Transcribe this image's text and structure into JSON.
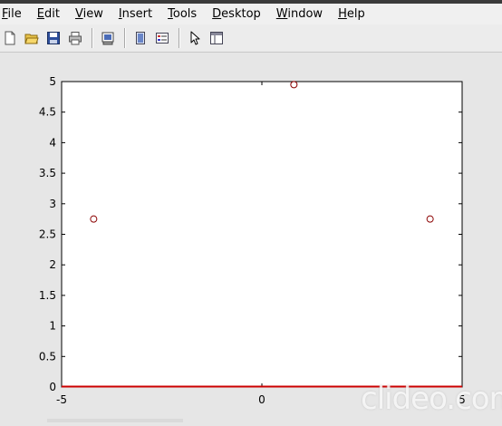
{
  "menu": {
    "items": [
      {
        "accel": "F",
        "rest": "ile"
      },
      {
        "accel": "E",
        "rest": "dit"
      },
      {
        "accel": "V",
        "rest": "iew"
      },
      {
        "accel": "I",
        "rest": "nsert"
      },
      {
        "accel": "T",
        "rest": "ools"
      },
      {
        "accel": "D",
        "rest": "esktop"
      },
      {
        "accel": "W",
        "rest": "indow"
      },
      {
        "accel": "H",
        "rest": "elp"
      }
    ]
  },
  "toolbar": {
    "icons": [
      "new-figure-icon",
      "open-file-icon",
      "save-icon",
      "print-icon",
      "print-preview-icon",
      "hide-toolbar-icon",
      "insert-legend-icon",
      "edit-plot-arrow-icon",
      "property-editor-icon"
    ]
  },
  "watermark": "clideo.com",
  "colors": {
    "line": "#cc0000",
    "marker": "#8b0000",
    "plot_bg": "#ffffff",
    "figure_bg": "#e6e6e6"
  },
  "chart_data": {
    "type": "scatter",
    "title": "",
    "xlabel": "",
    "ylabel": "",
    "xlim": [
      -5,
      5
    ],
    "ylim": [
      0,
      5
    ],
    "xticks": [
      "-5",
      "0",
      "5"
    ],
    "yticks": [
      "0",
      "0.5",
      "1",
      "1.5",
      "2",
      "2.5",
      "3",
      "3.5",
      "4",
      "4.5",
      "5"
    ],
    "grid": false,
    "series": [
      {
        "marker": "circle",
        "x": [
          -4.2,
          0.8,
          4.2
        ],
        "y": [
          2.75,
          4.95,
          2.75
        ]
      },
      {
        "type": "line",
        "x": [
          -5,
          5
        ],
        "y": [
          0,
          0
        ]
      }
    ]
  }
}
